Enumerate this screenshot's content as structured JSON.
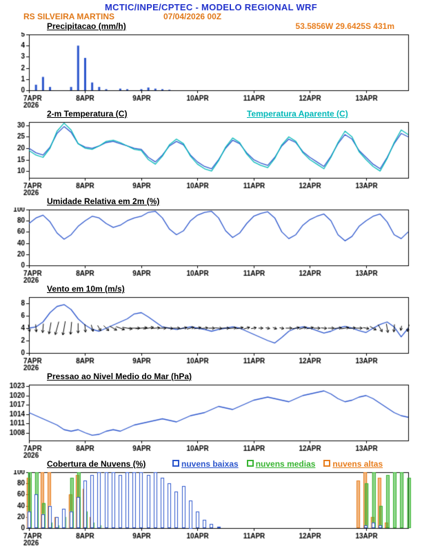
{
  "header": {
    "title": "MCTIC/INPE/CPTEC - MODELO REGIONAL WRF",
    "station": "RS SILVEIRA MARTINS",
    "run": "07/04/2026 00Z",
    "coords": "53.5856W 29.6425S 431m",
    "title_color": "#2233cc",
    "accent_color": "#e87e1e"
  },
  "time": {
    "tick_labels": [
      "7APR",
      "8APR",
      "9APR",
      "10APR",
      "11APR",
      "12APR",
      "13APR"
    ],
    "year": "2026",
    "step_hours": 3,
    "total_hours": 162
  },
  "chart_data": [
    {
      "type": "bar",
      "title": "Precipitacao (mm/h)",
      "ylim": [
        0,
        5
      ],
      "yticks": [
        0,
        1,
        2,
        3,
        4,
        5
      ],
      "color": "#2b55cc",
      "values": [
        0,
        0.5,
        1.2,
        0.3,
        0,
        0,
        0.3,
        4,
        2.9,
        0.7,
        0.3,
        0.1,
        0,
        0.15,
        0.1,
        0,
        0.1,
        0.25,
        0.15,
        0.1,
        0.05,
        0,
        0,
        0,
        0,
        0,
        0,
        0,
        0,
        0,
        0,
        0,
        0,
        0,
        0,
        0,
        0,
        0,
        0,
        0,
        0,
        0,
        0,
        0,
        0,
        0,
        0,
        0,
        0,
        0,
        0,
        0,
        0,
        0,
        0
      ]
    },
    {
      "type": "line",
      "title": "2-m Temperatura (C)",
      "ylim": [
        7,
        31.5
      ],
      "yticks": [
        10,
        15,
        20,
        25,
        30
      ],
      "series": [
        {
          "name": "2-m Temperatura (C)",
          "color": "#2b55cc",
          "values": [
            20,
            18,
            17,
            20.5,
            26.5,
            29.5,
            27,
            22,
            20.5,
            20,
            21,
            22.5,
            23,
            22,
            21,
            20,
            19.5,
            16,
            14,
            17,
            21,
            23,
            21.5,
            17,
            14,
            12,
            11,
            15,
            20,
            23.5,
            22,
            18,
            15,
            13.5,
            12.5,
            16,
            21,
            24,
            22.5,
            18.5,
            16,
            14,
            12,
            16.5,
            22,
            26,
            24,
            19,
            16,
            13,
            11,
            16,
            22,
            26.5,
            25
          ]
        },
        {
          "name": "Temperatura Aparente (C)",
          "color": "#00b8b8",
          "values": [
            19,
            17,
            16,
            20,
            27.5,
            31,
            28,
            22,
            20,
            19.5,
            21,
            23,
            23.5,
            22.5,
            21,
            19.5,
            19,
            15,
            13,
            16.5,
            21.5,
            24,
            22,
            16.5,
            13,
            11,
            10,
            14.5,
            20.5,
            24.5,
            22.5,
            17.5,
            14,
            12.5,
            11.5,
            15.5,
            21.5,
            25,
            23,
            18,
            15,
            13,
            11,
            16,
            22.5,
            27.5,
            25,
            18.5,
            15,
            12,
            10,
            15.5,
            22.5,
            28,
            26
          ]
        }
      ]
    },
    {
      "type": "line",
      "title": "Umidade Relativa em 2m (%)",
      "ylim": [
        0,
        100
      ],
      "yticks": [
        0,
        20,
        40,
        60,
        80,
        100
      ],
      "series": [
        {
          "name": "Umidade Relativa em 2m",
          "color": "#2b55cc",
          "values": [
            75,
            85,
            90,
            78,
            58,
            47,
            55,
            70,
            80,
            88,
            85,
            75,
            68,
            72,
            80,
            85,
            88,
            95,
            97,
            85,
            65,
            55,
            62,
            80,
            90,
            95,
            97,
            85,
            62,
            50,
            58,
            75,
            88,
            93,
            96,
            85,
            60,
            48,
            55,
            72,
            82,
            88,
            92,
            80,
            55,
            44,
            52,
            70,
            80,
            88,
            92,
            78,
            55,
            48,
            60
          ]
        }
      ]
    },
    {
      "type": "wind",
      "title": "Vento em 10m (m/s)",
      "ylim": [
        0,
        9
      ],
      "yticks": [
        0,
        2,
        4,
        6,
        8
      ],
      "arrow_anchor": 4,
      "arrow_color": "#000000",
      "series": [
        {
          "name": "Vento em 10m",
          "color": "#2b55cc",
          "values": [
            4,
            4.2,
            5,
            6.5,
            7.5,
            7.8,
            7,
            5.5,
            4.5,
            3.8,
            3.5,
            4,
            4.5,
            5,
            5.5,
            6.3,
            6.5,
            5.8,
            5,
            4.2,
            4,
            3.8,
            4,
            4.2,
            4,
            3.8,
            3.5,
            3.8,
            4,
            4.2,
            4,
            3.5,
            3,
            2.5,
            2,
            1.6,
            2.5,
            3.5,
            4,
            4.2,
            4,
            3.6,
            3.2,
            3.5,
            4,
            4.3,
            4,
            3.6,
            3.3,
            4,
            4.6,
            5,
            4.2,
            2.6,
            4
          ]
        }
      ],
      "arrow_angles_deg": [
        -80,
        -85,
        -95,
        -100,
        -105,
        -100,
        -95,
        -90,
        -85,
        -75,
        -60,
        -45,
        -30,
        -20,
        -10,
        0,
        5,
        10,
        5,
        0,
        -5,
        0,
        10,
        15,
        10,
        5,
        0,
        -5,
        0,
        5,
        10,
        15,
        10,
        0,
        -10,
        -20,
        -10,
        0,
        10,
        15,
        10,
        0,
        -5,
        0,
        5,
        10,
        5,
        0,
        -10,
        -30,
        -60,
        -80,
        -95,
        -100,
        -105
      ]
    },
    {
      "type": "line",
      "title": "Pressao ao Nivel Medio do Mar (hPa)",
      "ylim": [
        1005.5,
        1023.5
      ],
      "yticks": [
        1008,
        1011,
        1014,
        1017,
        1020,
        1023
      ],
      "series": [
        {
          "name": "Pressao ao Nivel Medio do Mar",
          "color": "#2b55cc",
          "values": [
            1014.5,
            1013.5,
            1012.5,
            1011.5,
            1010.5,
            1009,
            1008.5,
            1009,
            1008,
            1007.2,
            1007.5,
            1008.5,
            1009,
            1008.5,
            1009.5,
            1010.5,
            1011,
            1011.5,
            1012,
            1012.5,
            1012,
            1011.5,
            1012.5,
            1013.5,
            1014,
            1014.5,
            1015.5,
            1016.5,
            1016,
            1015.5,
            1016.5,
            1017.5,
            1018.5,
            1019,
            1019.5,
            1019,
            1018.5,
            1018,
            1019,
            1020,
            1020.5,
            1021,
            1021.5,
            1020.5,
            1019,
            1018,
            1018.5,
            1019.5,
            1020,
            1019,
            1017.5,
            1016,
            1014.5,
            1013.5,
            1013
          ]
        }
      ]
    },
    {
      "type": "multibar",
      "title": "Cobertura de Nuvens (%)",
      "ylim": [
        0,
        100
      ],
      "yticks": [
        0,
        20,
        40,
        60,
        80,
        100
      ],
      "series": [
        {
          "name": "nuvens baixas",
          "color": "#2b55cc",
          "values": [
            30,
            60,
            25,
            40,
            20,
            35,
            30,
            55,
            85,
            95,
            100,
            100,
            100,
            95,
            100,
            100,
            100,
            95,
            100,
            90,
            80,
            65,
            75,
            50,
            30,
            15,
            8,
            3,
            0,
            0,
            0,
            0,
            0,
            0,
            0,
            0,
            0,
            0,
            0,
            0,
            0,
            0,
            0,
            0,
            0,
            0,
            0,
            0,
            5,
            10,
            5,
            0,
            0,
            0,
            0
          ]
        },
        {
          "name": "nuvens medias",
          "color": "#38b432",
          "values": [
            100,
            100,
            45,
            10,
            5,
            20,
            90,
            100,
            30,
            10,
            5,
            0,
            0,
            0,
            0,
            0,
            0,
            0,
            0,
            0,
            0,
            0,
            0,
            0,
            0,
            0,
            0,
            0,
            0,
            0,
            0,
            0,
            0,
            0,
            0,
            0,
            0,
            0,
            0,
            0,
            0,
            0,
            0,
            0,
            0,
            0,
            0,
            0,
            80,
            100,
            40,
            95,
            100,
            100,
            90
          ]
        },
        {
          "name": "nuvens altas",
          "color": "#e87e1e",
          "values": [
            90,
            0,
            100,
            100,
            20,
            0,
            60,
            95,
            70,
            20,
            0,
            0,
            0,
            0,
            0,
            0,
            0,
            0,
            0,
            0,
            0,
            0,
            0,
            0,
            0,
            0,
            0,
            0,
            0,
            0,
            0,
            0,
            0,
            0,
            0,
            0,
            0,
            0,
            0,
            0,
            0,
            0,
            0,
            0,
            0,
            0,
            0,
            85,
            100,
            20,
            90,
            10,
            0,
            0,
            0
          ]
        }
      ]
    }
  ]
}
